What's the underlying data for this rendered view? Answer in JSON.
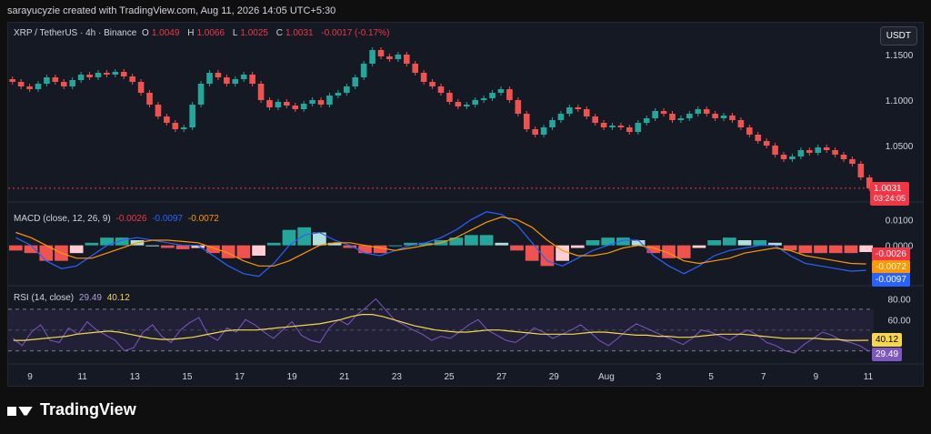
{
  "header_text": "sarayucyzie created with TradingView.com, Aug 11, 2026 14:05 UTC+5:30",
  "symbol": "XRP / TetherUS · 4h · Binance",
  "ohlc": {
    "o_label": "O",
    "o": "1.0049",
    "h_label": "H",
    "h": "1.0066",
    "l_label": "L",
    "l": "1.0025",
    "c_label": "C",
    "c": "1.0031",
    "chg": "-0.0017 (-0.17%)"
  },
  "currency_button": "USDT",
  "price_tag": "1.0031",
  "countdown": "03:24:05",
  "macd_legend": {
    "name": "MACD (close, 12, 26, 9)",
    "hist": "-0.0026",
    "macd": "-0.0097",
    "signal": "-0.0072"
  },
  "rsi_legend": {
    "name": "RSI (14, close)",
    "rsi": "29.49",
    "ma": "40.12"
  },
  "x_ticks": [
    "9",
    "11",
    "13",
    "15",
    "17",
    "19",
    "21",
    "23",
    "25",
    "27",
    "29",
    "Aug",
    "3",
    "5",
    "7",
    "9",
    "11"
  ],
  "price_ticks": [
    "1.1500",
    "1.1000",
    "1.0500"
  ],
  "macd_ticks": [
    "0.0100",
    "0.0000"
  ],
  "rsi_ticks": [
    "80.00",
    "60.00"
  ],
  "tags": {
    "macd_hist": "-0.0026",
    "macd_signal": "-0.0072",
    "macd_line": "-0.0097",
    "rsi_ma": "40.12",
    "rsi": "29.49"
  },
  "brand": "TradingView",
  "colors": {
    "up": "#26a69a",
    "down": "#ef5350",
    "macd": "#2962ff",
    "signal": "#ff9800",
    "rsi": "#7e57c2",
    "rsi_ma": "#f5d74b"
  },
  "chart_data": {
    "type": "line",
    "title": "XRP / TetherUS · 4h · Binance",
    "price": {
      "ylim": [
        1.0,
        1.165
      ],
      "closes": [
        1.12,
        1.115,
        1.112,
        1.118,
        1.125,
        1.12,
        1.115,
        1.122,
        1.128,
        1.125,
        1.13,
        1.128,
        1.131,
        1.126,
        1.12,
        1.108,
        1.095,
        1.082,
        1.075,
        1.068,
        1.07,
        1.095,
        1.118,
        1.13,
        1.125,
        1.118,
        1.123,
        1.128,
        1.118,
        1.1,
        1.092,
        1.098,
        1.094,
        1.09,
        1.096,
        1.1,
        1.095,
        1.105,
        1.108,
        1.115,
        1.125,
        1.14,
        1.155,
        1.148,
        1.145,
        1.15,
        1.14,
        1.13,
        1.12,
        1.115,
        1.108,
        1.098,
        1.093,
        1.095,
        1.1,
        1.102,
        1.108,
        1.112,
        1.1,
        1.085,
        1.068,
        1.062,
        1.07,
        1.078,
        1.085,
        1.092,
        1.09,
        1.082,
        1.075,
        1.07,
        1.072,
        1.07,
        1.065,
        1.075,
        1.08,
        1.088,
        1.085,
        1.078,
        1.08,
        1.085,
        1.09,
        1.085,
        1.08,
        1.083,
        1.078,
        1.07,
        1.062,
        1.055,
        1.05,
        1.04,
        1.035,
        1.038,
        1.045,
        1.042,
        1.048,
        1.045,
        1.04,
        1.035,
        1.03,
        1.015,
        1.0031
      ]
    },
    "macd": {
      "ylim": [
        -0.016,
        0.014
      ],
      "macd": [
        0.003,
        0.0,
        -0.006,
        -0.009,
        -0.008,
        -0.004,
        0.0,
        0.002,
        0.003,
        0.002,
        0.001,
        0.0,
        0.0,
        -0.004,
        -0.008,
        -0.011,
        -0.012,
        -0.007,
        0.0,
        0.004,
        0.005,
        0.002,
        0.0,
        -0.003,
        -0.004,
        -0.002,
        0.0,
        0.001,
        0.003,
        0.006,
        0.01,
        0.013,
        0.012,
        0.008,
        0.001,
        -0.006,
        -0.008,
        -0.005,
        -0.002,
        0.0,
        0.002,
        0.002,
        -0.004,
        -0.008,
        -0.011,
        -0.008,
        -0.004,
        -0.002,
        -0.001,
        0.0,
        0.0,
        -0.004,
        -0.007,
        -0.008,
        -0.009,
        -0.01,
        -0.0097
      ],
      "signal": [
        0.005,
        0.003,
        0.0,
        -0.003,
        -0.005,
        -0.005,
        -0.003,
        -0.001,
        0.001,
        0.002,
        0.002,
        0.0015,
        0.001,
        -0.001,
        -0.003,
        -0.006,
        -0.008,
        -0.008,
        -0.006,
        -0.003,
        0.0,
        0.001,
        0.001,
        0.0,
        -0.001,
        -0.002,
        -0.001,
        0.0,
        0.001,
        0.003,
        0.006,
        0.009,
        0.011,
        0.01,
        0.007,
        0.002,
        -0.002,
        -0.004,
        -0.004,
        -0.003,
        -0.001,
        0.0,
        -0.001,
        -0.003,
        -0.006,
        -0.007,
        -0.006,
        -0.005,
        -0.003,
        -0.002,
        -0.001,
        -0.002,
        -0.004,
        -0.005,
        -0.006,
        -0.007,
        -0.0072
      ],
      "hist": [
        -0.002,
        -0.003,
        -0.006,
        -0.006,
        -0.003,
        0.001,
        0.003,
        0.003,
        0.002,
        0.0,
        -0.001,
        -0.0015,
        -0.001,
        -0.003,
        -0.005,
        -0.005,
        -0.004,
        0.001,
        0.006,
        0.007,
        0.005,
        0.001,
        -0.001,
        -0.003,
        -0.003,
        0.0,
        0.001,
        0.001,
        0.002,
        0.003,
        0.004,
        0.004,
        0.001,
        -0.002,
        -0.006,
        -0.008,
        -0.006,
        -0.001,
        0.002,
        0.003,
        0.003,
        0.002,
        -0.003,
        -0.005,
        -0.005,
        -0.001,
        0.002,
        0.003,
        0.002,
        0.002,
        0.001,
        -0.002,
        -0.003,
        -0.003,
        -0.003,
        -0.003,
        -0.0026
      ]
    },
    "rsi": {
      "ylim": [
        20,
        90
      ],
      "band": [
        30,
        70
      ],
      "rsi": [
        42,
        35,
        48,
        55,
        40,
        38,
        52,
        46,
        58,
        50,
        45,
        40,
        30,
        33,
        48,
        55,
        44,
        38,
        50,
        57,
        62,
        45,
        40,
        52,
        48,
        60,
        55,
        48,
        42,
        50,
        58,
        45,
        40,
        38,
        52,
        60,
        55,
        65,
        72,
        80,
        70,
        60,
        55,
        50,
        46,
        40,
        44,
        42,
        48,
        55,
        60,
        50,
        45,
        40,
        38,
        44,
        52,
        48,
        42,
        46,
        50,
        55,
        48,
        40,
        35,
        42,
        50,
        56,
        52,
        48,
        44,
        40,
        36,
        42,
        50,
        48,
        44,
        40,
        46,
        50,
        45,
        38,
        35,
        30,
        28,
        36,
        42,
        48,
        45,
        40,
        38,
        35,
        29.49
      ],
      "ma": [
        40,
        40,
        41,
        42,
        43,
        44,
        46,
        47,
        48,
        49,
        48,
        46,
        44,
        42,
        41,
        41,
        42,
        43,
        45,
        47,
        49,
        50,
        50,
        50,
        51,
        52,
        53,
        54,
        55,
        56,
        58,
        60,
        63,
        65,
        65,
        63,
        60,
        57,
        54,
        52,
        50,
        49,
        48,
        48,
        49,
        50,
        50,
        49,
        48,
        47,
        46,
        46,
        46,
        46,
        47,
        48,
        48,
        47,
        46,
        45,
        45,
        44,
        44,
        43,
        43,
        44,
        45,
        46,
        46,
        46,
        45,
        44,
        43,
        42,
        42,
        42,
        42,
        41,
        41,
        40,
        40,
        40.12
      ]
    }
  }
}
